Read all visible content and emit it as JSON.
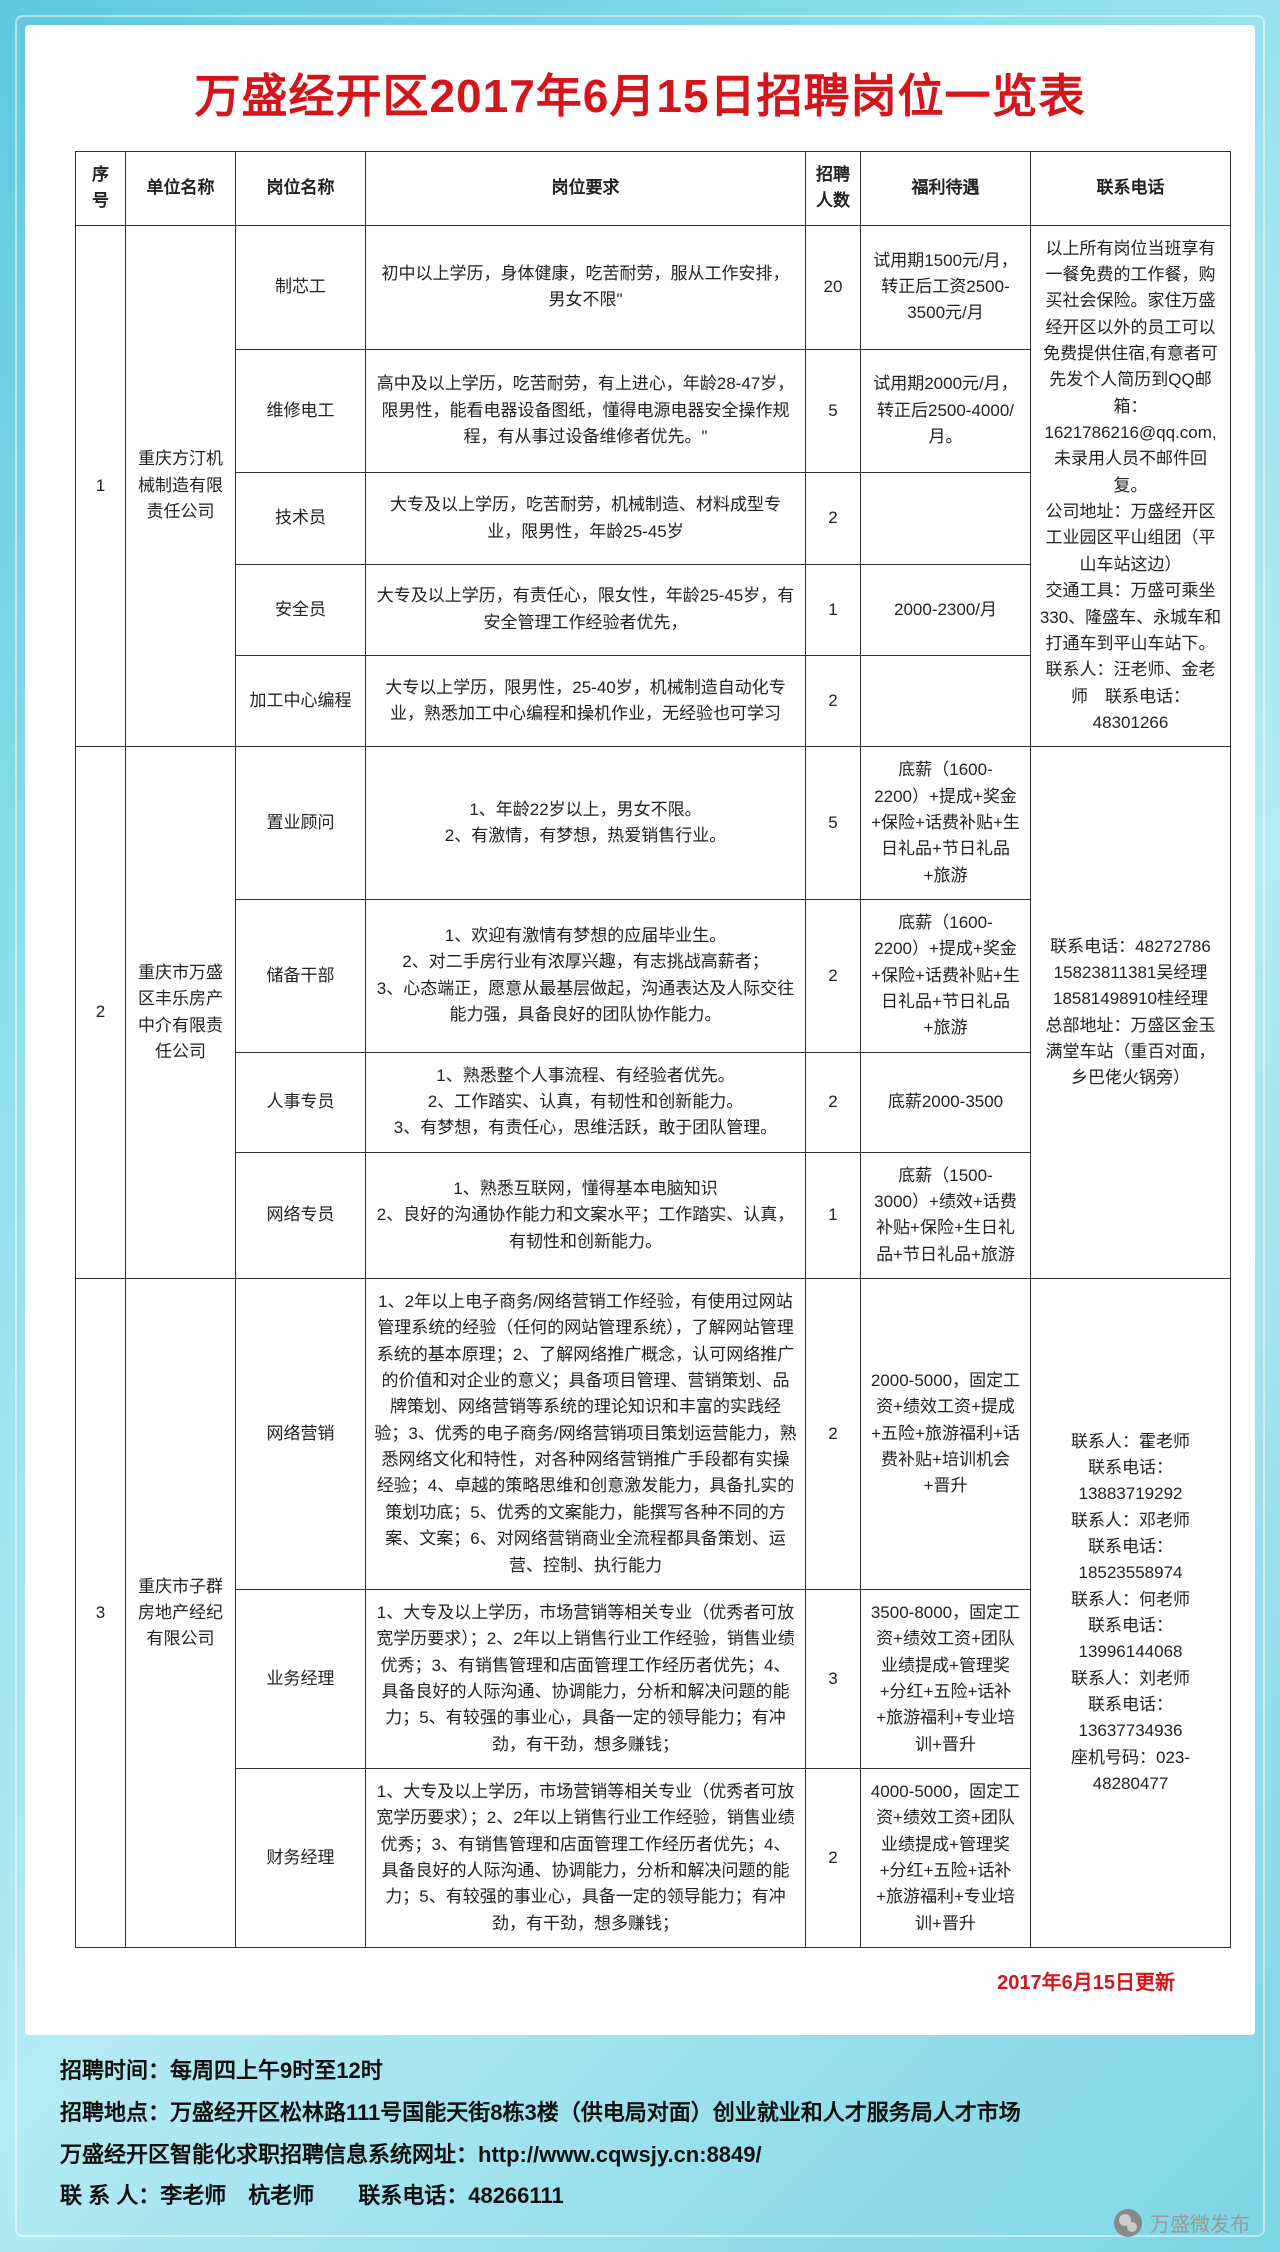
{
  "title": "万盛经开区2017年6月15日招聘岗位一览表",
  "headers": {
    "idx": "序号",
    "company": "单位名称",
    "position": "岗位名称",
    "requirement": "岗位要求",
    "count": "招聘人数",
    "benefit": "福利待遇",
    "contact": "联系电话"
  },
  "groups": [
    {
      "idx": "1",
      "company": "重庆方汀机械制造有限责任公司",
      "contact": "以上所有岗位当班享有一餐免费的工作餐，购买社会保险。家住万盛经开区以外的员工可以免费提供住宿,有意者可先发个人简历到QQ邮箱：1621786216@qq.com,未录用人员不邮件回复。\n公司地址：万盛经开区工业园区平山组团（平山车站这边）\n交通工具：万盛可乘坐330、隆盛车、永城车和打通车到平山车站下。\n联系人：汪老师、金老师　联系电话：48301266",
      "rows": [
        {
          "position": "制芯工",
          "requirement": "初中以上学历，身体健康，吃苦耐劳，服从工作安排，男女不限\"",
          "count": "20",
          "benefit": "试用期1500元/月，转正后工资2500-3500元/月"
        },
        {
          "position": "维修电工",
          "requirement": "高中及以上学历，吃苦耐劳，有上进心，年龄28-47岁，限男性，能看电器设备图纸，懂得电源电器安全操作规程，有从事过设备维修者优先。\"",
          "count": "5",
          "benefit": "试用期2000元/月，转正后2500-4000/月。"
        },
        {
          "position": "技术员",
          "requirement": "大专及以上学历，吃苦耐劳，机械制造、材料成型专业，限男性，年龄25-45岁",
          "count": "2",
          "benefit": ""
        },
        {
          "position": "安全员",
          "requirement": "大专及以上学历，有责任心，限女性，年龄25-45岁，有安全管理工作经验者优先，",
          "count": "1",
          "benefit": "2000-2300/月"
        },
        {
          "position": "加工中心编程",
          "requirement": "大专以上学历，限男性，25-40岁，机械制造自动化专业，熟悉加工中心编程和操机作业，无经验也可学习",
          "count": "2",
          "benefit": ""
        }
      ]
    },
    {
      "idx": "2",
      "company": "重庆市万盛区丰乐房产中介有限责任公司",
      "contact": "联系电话：48272786\n15823811381吴经理\n18581498910桂经理\n总部地址：万盛区金玉满堂车站（重百对面，乡巴佬火锅旁）",
      "rows": [
        {
          "position": "置业顾问",
          "requirement": "1、年龄22岁以上，男女不限。\n2、有激情，有梦想，热爱销售行业。",
          "count": "5",
          "benefit": "底薪（1600-2200）+提成+奖金+保险+话费补贴+生日礼品+节日礼品+旅游"
        },
        {
          "position": "储备干部",
          "requirement": "1、欢迎有激情有梦想的应届毕业生。\n2、对二手房行业有浓厚兴趣，有志挑战高薪者；\n3、心态端正，愿意从最基层做起，沟通表达及人际交往能力强，具备良好的团队协作能力。",
          "count": "2",
          "benefit": "底薪（1600-2200）+提成+奖金+保险+话费补贴+生日礼品+节日礼品+旅游"
        },
        {
          "position": "人事专员",
          "requirement": "1、熟悉整个人事流程、有经验者优先。\n2、工作踏实、认真，有韧性和创新能力。\n3、有梦想，有责任心，思维活跃，敢于团队管理。",
          "count": "2",
          "benefit": "底薪2000-3500"
        },
        {
          "position": "网络专员",
          "requirement": "1、熟悉互联网，懂得基本电脑知识\n2、良好的沟通协作能力和文案水平；工作踏实、认真，有韧性和创新能力。",
          "count": "1",
          "benefit": "底薪（1500-3000）+绩效+话费补贴+保险+生日礼品+节日礼品+旅游"
        }
      ]
    },
    {
      "idx": "3",
      "company": "重庆市子群房地产经纪有限公司",
      "contact": "联系人：霍老师\n联系电话：13883719292\n联系人：邓老师\n联系电话：18523558974\n联系人：何老师\n联系电话：13996144068\n联系人：刘老师\n联系电话：13637734936\n座机号码：023-48280477",
      "rows": [
        {
          "position": "网络营销",
          "requirement": "1、2年以上电子商务/网络营销工作经验，有使用过网站管理系统的经验（任何的网站管理系统），了解网站管理系统的基本原理；2、了解网络推广概念，认可网络推广的价值和对企业的意义；具备项目管理、营销策划、品牌策划、网络营销等系统的理论知识和丰富的实践经验；3、优秀的电子商务/网络营销项目策划运营能力，熟悉网络文化和特性，对各种网络营销推广手段都有实操经验；4、卓越的策略思维和创意激发能力，具备扎实的策划功底；5、优秀的文案能力，能撰写各种不同的方案、文案；6、对网络营销商业全流程都具备策划、运营、控制、执行能力",
          "count": "2",
          "benefit": "2000-5000，固定工资+绩效工资+提成+五险+旅游福利+话费补贴+培训机会+晋升"
        },
        {
          "position": "业务经理",
          "requirement": "1、大专及以上学历，市场营销等相关专业（优秀者可放宽学历要求）；2、2年以上销售行业工作经验，销售业绩优秀；3、有销售管理和店面管理工作经历者优先；4、具备良好的人际沟通、协调能力，分析和解决问题的能力；5、有较强的事业心，具备一定的领导能力；有冲劲，有干劲，想多赚钱；",
          "count": "3",
          "benefit": "3500-8000，固定工资+绩效工资+团队业绩提成+管理奖+分红+五险+话补+旅游福利+专业培训+晋升"
        },
        {
          "position": "财务经理",
          "requirement": "1、大专及以上学历，市场营销等相关专业（优秀者可放宽学历要求）；2、2年以上销售行业工作经验，销售业绩优秀；3、有销售管理和店面管理工作经历者优先；4、具备良好的人际沟通、协调能力，分析和解决问题的能力；5、有较强的事业心，具备一定的领导能力；有冲劲，有干劲，想多赚钱；",
          "count": "2",
          "benefit": "4000-5000，固定工资+绩效工资+团队业绩提成+管理奖+分红+五险+话补+旅游福利+专业培训+晋升"
        }
      ]
    }
  ],
  "update_note": "2017年6月15日更新",
  "footer": {
    "l1": "招聘时间：每周四上午9时至12时",
    "l2": "招聘地点：万盛经开区松林路111号国能天街8栋3楼（供电局对面）创业就业和人才服务局人才市场",
    "l3": "万盛经开区智能化求职招聘信息系统网址：http://www.cqwsjy.cn:8849/",
    "l4": "联 系 人：李老师　杭老师　　联系电话：48266111"
  },
  "wechat_tag": "万盛微发布"
}
